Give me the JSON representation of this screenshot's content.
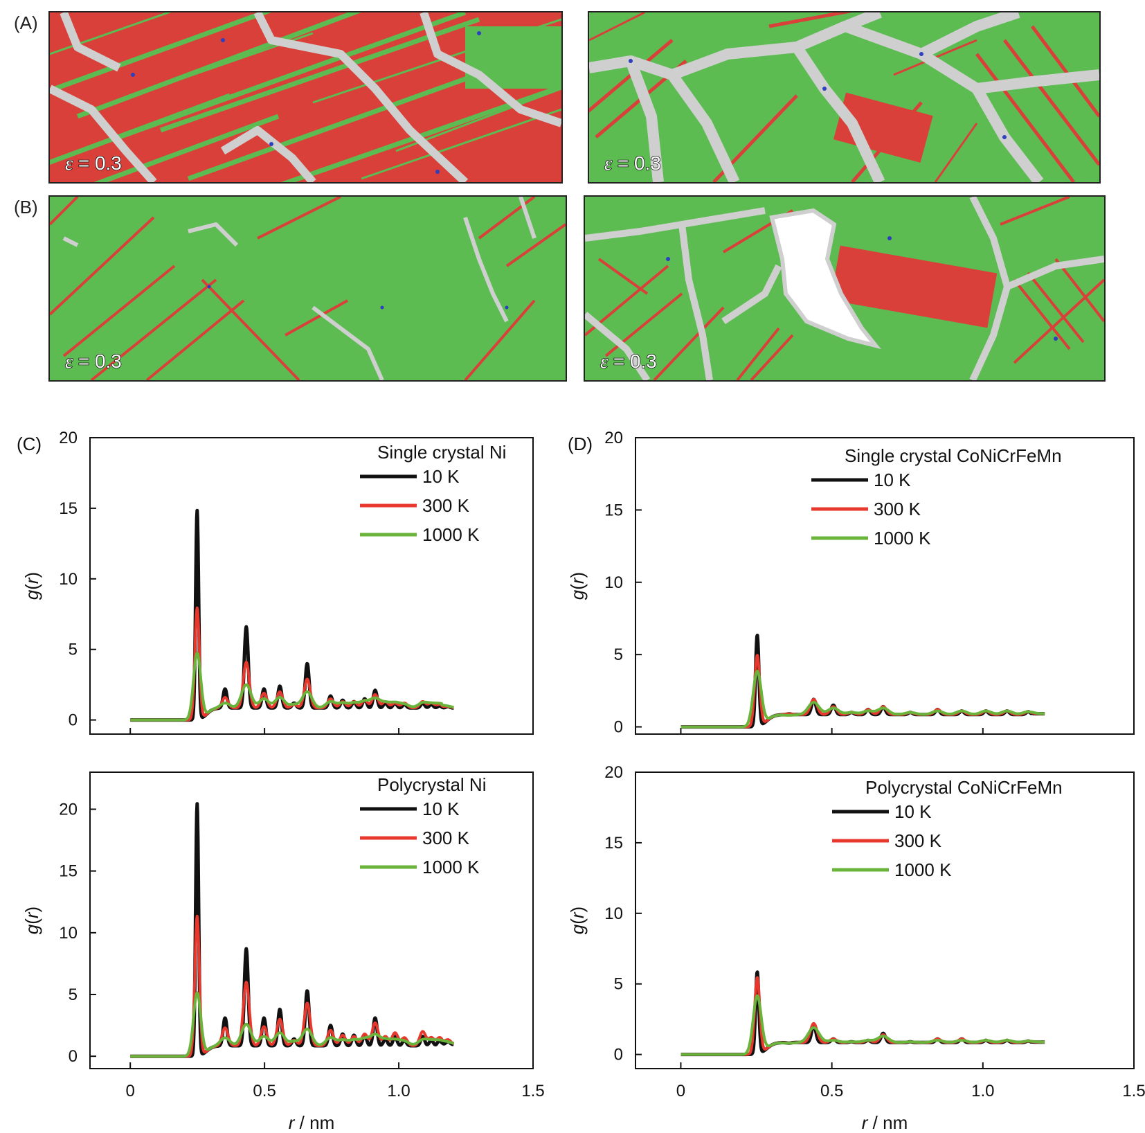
{
  "colors": {
    "fcc_green": "#5cbc52",
    "hcp_red": "#d9403a",
    "other_grey": "#cfcfcf",
    "bcc_blue": "#2b3fbf",
    "void_white": "#ffffff",
    "line_10K": "#111111",
    "line_300K": "#e8382d",
    "line_1000K": "#6ab43c"
  },
  "snapshots": {
    "panel_A_label": "(A)",
    "panel_B_label": "(B)",
    "strain_prefix": "ε",
    "strain_text": " = 0.3",
    "items": [
      {
        "id": "A-left",
        "dominant": "red"
      },
      {
        "id": "A-right",
        "dominant": "green"
      },
      {
        "id": "B-left",
        "dominant": "green"
      },
      {
        "id": "B-right",
        "dominant": "green",
        "void": true
      }
    ]
  },
  "chart_data": [
    {
      "id": "C-top",
      "panel_label": "(C)",
      "type": "line",
      "legend_title": "Single crystal Ni",
      "xlabel_italic": "r",
      "xlabel_unit": " / nm",
      "ylabel_italic": "g",
      "ylabel_paren": "(r)",
      "xlim": [
        -0.15,
        1.5
      ],
      "ylim": [
        -1,
        20
      ],
      "xticks": [
        0,
        0.5,
        1.0,
        1.5
      ],
      "xtick_labels": [
        "0",
        "0.5",
        "1.0",
        "1.5"
      ],
      "yticks": [
        0,
        5,
        10,
        15,
        20
      ],
      "ytick_labels": [
        "0",
        "5",
        "10",
        "15",
        "20"
      ],
      "show_xtick_labels": false,
      "baseline": 1.0,
      "tail": 0.85,
      "peaks": [
        0.249,
        0.353,
        0.432,
        0.498,
        0.557,
        0.61,
        0.659,
        0.746,
        0.791,
        0.833,
        0.873,
        0.912,
        0.95,
        0.986,
        1.021,
        1.089,
        1.121,
        1.152,
        1.183
      ],
      "series": [
        {
          "name": "10 K",
          "heights": [
            14.8,
            2.2,
            6.6,
            2.2,
            2.4,
            1.2,
            4.0,
            1.7,
            1.4,
            1.3,
            1.5,
            2.1,
            1.2,
            1.2,
            1.1,
            1.2,
            1.1,
            1.0,
            1.0
          ]
        },
        {
          "name": "300 K",
          "heights": [
            7.9,
            1.6,
            4.1,
            1.9,
            2.0,
            1.1,
            2.9,
            1.5,
            1.3,
            1.3,
            1.4,
            1.8,
            1.3,
            1.2,
            1.2,
            1.3,
            1.2,
            1.1,
            1.0
          ]
        },
        {
          "name": "1000 K",
          "heights": [
            4.7,
            1.2,
            2.5,
            1.5,
            1.6,
            1.1,
            2.0,
            1.3,
            1.2,
            1.2,
            1.3,
            1.5,
            1.2,
            1.2,
            1.1,
            1.2,
            1.1,
            1.1,
            1.0
          ]
        }
      ]
    },
    {
      "id": "C-bottom",
      "panel_label": "",
      "type": "line",
      "legend_title": "Polycrystal Ni",
      "xlabel_italic": "r",
      "xlabel_unit": " / nm",
      "ylabel_italic": "g",
      "ylabel_paren": "(r)",
      "xlim": [
        -0.15,
        1.5
      ],
      "ylim": [
        -1,
        23
      ],
      "xticks": [
        0,
        0.5,
        1.0,
        1.5
      ],
      "xtick_labels": [
        "0",
        "0.5",
        "1.0",
        "1.5"
      ],
      "yticks": [
        0,
        5,
        10,
        15,
        20
      ],
      "ytick_labels": [
        "0",
        "5",
        "10",
        "15",
        "20"
      ],
      "show_xtick_labels": true,
      "baseline": 1.0,
      "tail": 1.2,
      "peaks": [
        0.249,
        0.353,
        0.432,
        0.498,
        0.557,
        0.61,
        0.659,
        0.746,
        0.791,
        0.833,
        0.873,
        0.912,
        0.95,
        0.986,
        1.021,
        1.089,
        1.121,
        1.152,
        1.183
      ],
      "series": [
        {
          "name": "10 K",
          "heights": [
            20.4,
            3.1,
            8.7,
            3.1,
            3.8,
            1.4,
            5.3,
            2.5,
            1.8,
            1.7,
            1.7,
            3.1,
            1.4,
            1.6,
            1.3,
            1.6,
            1.3,
            1.3,
            1.2
          ]
        },
        {
          "name": "300 K",
          "heights": [
            11.3,
            2.3,
            6.0,
            2.4,
            3.0,
            1.3,
            4.3,
            2.1,
            1.7,
            1.6,
            1.8,
            2.7,
            1.6,
            1.9,
            1.5,
            2.0,
            1.5,
            1.5,
            1.4
          ]
        },
        {
          "name": "1000 K",
          "heights": [
            5.1,
            1.5,
            2.6,
            1.6,
            1.9,
            1.2,
            2.2,
            1.5,
            1.3,
            1.3,
            1.4,
            1.7,
            1.3,
            1.3,
            1.2,
            1.3,
            1.2,
            1.2,
            1.1
          ]
        }
      ]
    },
    {
      "id": "D-top",
      "panel_label": "(D)",
      "type": "line",
      "legend_title": "Single crystal CoNiCrFeMn",
      "xlabel_italic": "r",
      "xlabel_unit": " / nm",
      "ylabel_italic": "g",
      "ylabel_paren": "(r)",
      "xlim": [
        -0.15,
        1.5
      ],
      "ylim": [
        -0.5,
        20
      ],
      "xticks": [
        0,
        0.5,
        1.0,
        1.5
      ],
      "xtick_labels": [
        "0",
        "0.5",
        "1.0",
        "1.5"
      ],
      "yticks": [
        0,
        5,
        10,
        15,
        20
      ],
      "ytick_labels": [
        "0",
        "5",
        "10",
        "15",
        "20"
      ],
      "show_xtick_labels": false,
      "baseline": 1.0,
      "tail": 1.05,
      "peaks": [
        0.253,
        0.358,
        0.44,
        0.505,
        0.565,
        0.62,
        0.67,
        0.76,
        0.85,
        0.93,
        1.01,
        1.08,
        1.15
      ],
      "series": [
        {
          "name": "10 K",
          "heights": [
            6.3,
            0.9,
            1.9,
            1.5,
            1.0,
            1.2,
            1.4,
            1.0,
            1.2,
            1.1,
            1.1,
            1.1,
            1.05
          ]
        },
        {
          "name": "300 K",
          "heights": [
            4.9,
            0.9,
            1.9,
            1.4,
            1.0,
            1.2,
            1.4,
            1.0,
            1.2,
            1.1,
            1.1,
            1.1,
            1.05
          ]
        },
        {
          "name": "1000 K",
          "heights": [
            3.8,
            0.8,
            1.7,
            1.3,
            1.0,
            1.1,
            1.3,
            1.0,
            1.1,
            1.1,
            1.1,
            1.1,
            1.05
          ]
        }
      ]
    },
    {
      "id": "D-bottom",
      "panel_label": "",
      "type": "line",
      "legend_title": "Polycrystal CoNiCrFeMn",
      "xlabel_italic": "r",
      "xlabel_unit": " / nm",
      "ylabel_italic": "g",
      "ylabel_paren": "(r)",
      "xlim": [
        -0.15,
        1.5
      ],
      "ylim": [
        -1,
        20
      ],
      "xticks": [
        0,
        0.5,
        1.0,
        1.5
      ],
      "xtick_labels": [
        "0",
        "0.5",
        "1.0",
        "1.5"
      ],
      "yticks": [
        0,
        5,
        10,
        15,
        20
      ],
      "ytick_labels": [
        "0",
        "5",
        "10",
        "15",
        "20"
      ],
      "show_xtick_labels": true,
      "baseline": 1.0,
      "tail": 0.95,
      "peaks": [
        0.253,
        0.358,
        0.44,
        0.505,
        0.565,
        0.62,
        0.67,
        0.76,
        0.85,
        0.93,
        1.01,
        1.08,
        1.15
      ],
      "series": [
        {
          "name": "10 K",
          "heights": [
            5.8,
            0.8,
            2.1,
            1.1,
            0.9,
            1.0,
            1.5,
            0.9,
            1.1,
            1.1,
            1.0,
            1.0,
            0.95
          ]
        },
        {
          "name": "300 K",
          "heights": [
            5.4,
            0.8,
            2.2,
            1.1,
            0.9,
            1.0,
            1.4,
            0.9,
            1.1,
            1.1,
            1.0,
            1.0,
            0.95
          ]
        },
        {
          "name": "1000 K",
          "heights": [
            4.1,
            0.8,
            1.9,
            1.0,
            0.9,
            1.0,
            1.3,
            0.9,
            1.0,
            1.0,
            1.0,
            1.0,
            0.95
          ]
        }
      ]
    }
  ]
}
